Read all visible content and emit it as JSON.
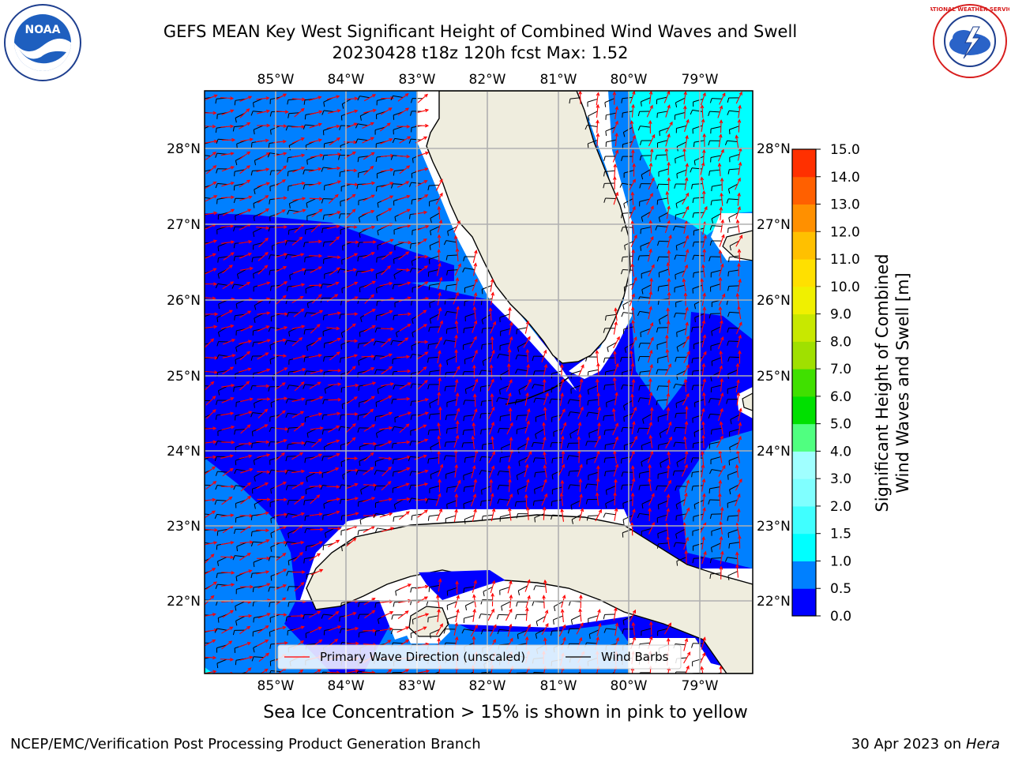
{
  "header": {
    "title_line1": "GEFS MEAN Key West Significant Height of Combined Wind Waves and Swell",
    "title_line2": "20230428 t18z 120h fcst   Max: 1.52"
  },
  "logos": {
    "left": {
      "icon": "noaa-logo-icon",
      "text": "NOAA"
    },
    "right": {
      "icon": "nws-logo-icon",
      "text": "NATIONAL WEATHER SERVICE"
    }
  },
  "map": {
    "lon_ticks": [
      "85°W",
      "84°W",
      "83°W",
      "82°W",
      "81°W",
      "80°W",
      "79°W"
    ],
    "lat_ticks": [
      "28°N",
      "27°N",
      "26°N",
      "25°N",
      "24°N",
      "23°N",
      "22°N"
    ],
    "legend": {
      "wave_direction": "Primary Wave Direction (unscaled)",
      "wind_barbs": "Wind Barbs"
    }
  },
  "colorbar": {
    "label_line1": "Significant Height of Combined",
    "label_line2": "Wind Waves and Swell [m]",
    "ticks": [
      "0.0",
      "0.5",
      "1.0",
      "1.5",
      "2.0",
      "3.0",
      "4.0",
      "5.0",
      "6.0",
      "7.0",
      "8.0",
      "9.0",
      "10.0",
      "11.0",
      "12.0",
      "13.0",
      "14.0",
      "15.0"
    ],
    "colors": [
      "#0000ff",
      "#0080ff",
      "#00ffff",
      "#40ffff",
      "#80ffff",
      "#a0ffff",
      "#50ff80",
      "#00e000",
      "#40e000",
      "#a0e000",
      "#c8e800",
      "#f0f000",
      "#ffe000",
      "#ffc000",
      "#ff9000",
      "#ff6000",
      "#ff3000",
      "#ff0000"
    ]
  },
  "footer": {
    "sea_ice_note": "Sea Ice Concentration > 15% is shown in pink to yellow",
    "credit": "NCEP/EMC/Verification Post Processing Product Generation Branch",
    "date": "30 Apr 2023 on ",
    "host": "Hera"
  },
  "colors": {
    "land": "#efedde",
    "deep_blue": "#0000ff",
    "mid_blue": "#0080ff",
    "cyan": "#00ffff",
    "wave_arrow": "#ff0000",
    "grid": "#b0b0b0"
  }
}
